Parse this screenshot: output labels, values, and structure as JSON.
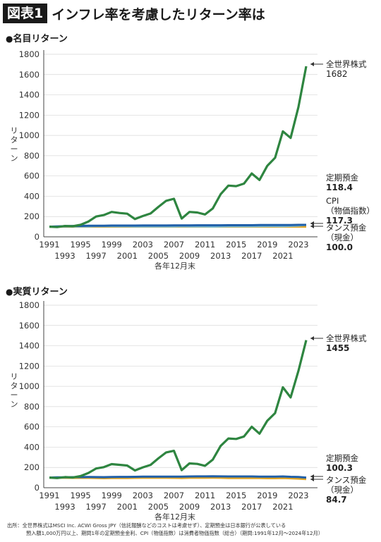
{
  "header": {
    "badge": "図表1",
    "title": "インフレ率を考慮したリターン率は"
  },
  "source": {
    "line1": "出所：全世界株式はMSCI Inc. ACWI Gross JPY（信託報酬などのコストは考慮せず）、定期預金は日本銀行が公表している",
    "line2": "預入額1,000万円以上、期間1年の定期預金金利、CPI（物価指数）は消費者物価指数（総合）（期間:1991年12月〜2024年12月）"
  },
  "colors": {
    "stock": "#2e8540",
    "deposit": "#1f5fa8",
    "cpi": "#7bbcd6",
    "cash": "#e0a526",
    "axis": "#444444",
    "grid": "#d8d8d8"
  },
  "chart_data": [
    {
      "type": "line",
      "title": "名目リターン",
      "xlabel": "各年12月末",
      "ylabel": "リターン",
      "ylim": [
        0,
        1800
      ],
      "yticks": [
        "0",
        "200",
        "400",
        "600",
        "800",
        "1000",
        "1200",
        "1400",
        "1600",
        "1800"
      ],
      "xticks_top": [
        "1991",
        "1995",
        "1999",
        "2003",
        "2007",
        "2011",
        "2015",
        "2019",
        "2023"
      ],
      "xticks_bottom": [
        "1993",
        "1997",
        "2001",
        "2005",
        "2009",
        "2013",
        "2017",
        "2021"
      ],
      "x": [
        1991,
        1992,
        1993,
        1994,
        1995,
        1996,
        1997,
        1998,
        1999,
        2000,
        2001,
        2002,
        2003,
        2004,
        2005,
        2006,
        2007,
        2008,
        2009,
        2010,
        2011,
        2012,
        2013,
        2014,
        2015,
        2016,
        2017,
        2018,
        2019,
        2020,
        2021,
        2022,
        2023,
        2024
      ],
      "series": [
        {
          "name": "全世界株式",
          "end_label": "1682",
          "color": "#2e8540",
          "values": [
            100,
            96,
            107,
            104,
            118,
            150,
            200,
            215,
            245,
            235,
            228,
            175,
            205,
            230,
            295,
            355,
            375,
            180,
            245,
            240,
            220,
            280,
            420,
            505,
            500,
            525,
            625,
            560,
            700,
            780,
            1040,
            975,
            1280,
            1682
          ]
        },
        {
          "name": "定期預金",
          "end_label": "118.4",
          "color": "#1f5fa8",
          "values": [
            100,
            103,
            105,
            107,
            108,
            109,
            110,
            110,
            111,
            111,
            111,
            111,
            112,
            112,
            112,
            112,
            113,
            113,
            113,
            114,
            114,
            114,
            114,
            115,
            115,
            115,
            115,
            116,
            116,
            116,
            117,
            117,
            118,
            118.4
          ]
        },
        {
          "name": "CPI（物価指数）",
          "end_label": "117.3",
          "color": "#7bbcd6",
          "values": [
            100,
            101,
            102,
            103,
            103,
            103,
            105,
            106,
            105,
            104,
            104,
            103,
            102,
            102,
            102,
            102,
            103,
            104,
            102,
            102,
            102,
            101,
            102,
            104,
            104,
            104,
            104,
            105,
            106,
            106,
            105,
            108,
            111,
            117.3
          ]
        },
        {
          "name": "タンス預金（現金）",
          "end_label": "100.0",
          "color": "#e0a526",
          "values": [
            100,
            100,
            100,
            100,
            100,
            100,
            100,
            100,
            100,
            100,
            100,
            100,
            100,
            100,
            100,
            100,
            100,
            100,
            100,
            100,
            100,
            100,
            100,
            100,
            100,
            100,
            100,
            100,
            100,
            100,
            100,
            100,
            100,
            100
          ]
        }
      ],
      "legend": "right"
    },
    {
      "type": "line",
      "title": "実質リターン",
      "xlabel": "各年12月末",
      "ylabel": "リターン",
      "ylim": [
        0,
        1800
      ],
      "yticks": [
        "0",
        "200",
        "400",
        "600",
        "800",
        "1000",
        "1200",
        "1400",
        "1600",
        "1800"
      ],
      "xticks_top": [
        "1991",
        "1995",
        "1999",
        "2003",
        "2007",
        "2011",
        "2015",
        "2019",
        "2023"
      ],
      "xticks_bottom": [
        "1993",
        "1997",
        "2001",
        "2005",
        "2009",
        "2013",
        "2017",
        "2021"
      ],
      "x": [
        1991,
        1992,
        1993,
        1994,
        1995,
        1996,
        1997,
        1998,
        1999,
        2000,
        2001,
        2002,
        2003,
        2004,
        2005,
        2006,
        2007,
        2008,
        2009,
        2010,
        2011,
        2012,
        2013,
        2014,
        2015,
        2016,
        2017,
        2018,
        2019,
        2020,
        2021,
        2022,
        2023,
        2024
      ],
      "series": [
        {
          "name": "全世界株式",
          "end_label": "1455",
          "color": "#2e8540",
          "values": [
            100,
            95,
            105,
            101,
            115,
            145,
            190,
            203,
            233,
            226,
            219,
            170,
            201,
            225,
            289,
            348,
            364,
            173,
            240,
            235,
            216,
            277,
            412,
            486,
            481,
            505,
            601,
            533,
            660,
            736,
            990,
            890,
            1153,
            1455
          ]
        },
        {
          "name": "定期預金",
          "end_label": "100.3",
          "color": "#1f5fa8",
          "values": [
            100,
            102,
            103,
            104,
            105,
            106,
            105,
            104,
            106,
            107,
            107,
            108,
            110,
            110,
            110,
            110,
            110,
            109,
            111,
            112,
            112,
            113,
            112,
            111,
            111,
            111,
            111,
            110,
            109,
            109,
            111,
            108,
            106,
            100.3
          ]
        },
        {
          "name": "タンス預金（現金）",
          "end_label": "84.7",
          "color": "#e0a526",
          "values": [
            100,
            99,
            98,
            97,
            97,
            97,
            95,
            94,
            95,
            96,
            96,
            97,
            98,
            98,
            98,
            98,
            97,
            96,
            98,
            98,
            98,
            99,
            98,
            96,
            96,
            96,
            96,
            95,
            94,
            94,
            95,
            93,
            90,
            84.7
          ]
        }
      ],
      "legend": "right"
    }
  ]
}
